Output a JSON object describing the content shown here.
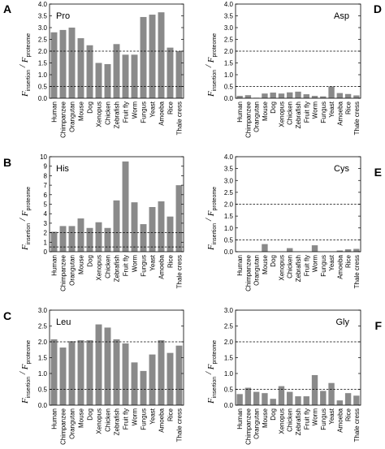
{
  "chart_data": [
    {
      "panel": "A",
      "type": "bar",
      "title": "Pro",
      "ylabel_main": "F",
      "ylabel_sub1": "insertion",
      "ylabel_sep": "/",
      "ylabel_sub2": "proteome",
      "ylim": [
        0,
        4
      ],
      "yticks": [
        "0.0",
        "0.5",
        "1.0",
        "1.5",
        "2.0",
        "2.5",
        "3.0",
        "3.5",
        "4.0"
      ],
      "reference_lines": [
        0.5,
        2.0
      ],
      "categories": [
        "Human",
        "Chimpanzee",
        "Orangutan",
        "Mouse",
        "Dog",
        "Xenopus",
        "Chicken",
        "Zebrafish",
        "Fruit fly",
        "Worm",
        "Fungus",
        "Yeast",
        "Amoeba",
        "Rice",
        "Thale cress"
      ],
      "values": [
        2.8,
        2.9,
        3.0,
        2.55,
        2.25,
        1.5,
        1.45,
        2.3,
        1.85,
        1.85,
        3.45,
        3.55,
        3.65,
        2.15,
        2.0
      ]
    },
    {
      "panel": "D",
      "type": "bar",
      "title": "Asp",
      "ylabel_main": "F",
      "ylabel_sub1": "insertion",
      "ylabel_sep": "/",
      "ylabel_sub2": "proteome",
      "ylim": [
        0,
        4
      ],
      "yticks": [
        "0.0",
        "0.5",
        "1.0",
        "1.5",
        "2.0",
        "2.5",
        "3.0",
        "3.5",
        "4.0"
      ],
      "reference_lines": [
        0.5,
        2.0
      ],
      "categories": [
        "Human",
        "Chimpanzee",
        "Orangutan",
        "Mouse",
        "Dog",
        "Xenopus",
        "Chicken",
        "Zebrafish",
        "Fruit fly",
        "Worm",
        "Fungus",
        "Yeast",
        "Amoeba",
        "Rice",
        "Thale cress"
      ],
      "values": [
        0.1,
        0.13,
        0.02,
        0.2,
        0.24,
        0.2,
        0.25,
        0.28,
        0.17,
        0.1,
        0.08,
        0.5,
        0.22,
        0.18,
        0.12
      ]
    },
    {
      "panel": "B",
      "type": "bar",
      "title": "His",
      "ylabel_main": "F",
      "ylabel_sub1": "insertion",
      "ylabel_sep": "/",
      "ylabel_sub2": "proteome",
      "ylim": [
        0,
        10
      ],
      "yticks": [
        "0",
        "1",
        "2",
        "3",
        "4",
        "5",
        "6",
        "7",
        "8",
        "9",
        "10"
      ],
      "reference_lines": [
        0.5,
        2.0
      ],
      "categories": [
        "Human",
        "Chimpanzee",
        "Orangutan",
        "Mouse",
        "Dog",
        "Xenopus",
        "Chicken",
        "Zebrafish",
        "Fruit fly",
        "Worm",
        "Fungus",
        "Yeast",
        "Amoeba",
        "Rice",
        "Thale cress"
      ],
      "values": [
        2.1,
        2.7,
        2.7,
        3.5,
        2.5,
        3.1,
        2.5,
        5.4,
        9.5,
        5.2,
        2.9,
        4.7,
        5.3,
        3.7,
        7.0
      ]
    },
    {
      "panel": "E",
      "type": "bar",
      "title": "Cys",
      "ylabel_main": "F",
      "ylabel_sub1": "insertion",
      "ylabel_sep": "/",
      "ylabel_sub2": "proteome",
      "ylim": [
        0,
        4
      ],
      "yticks": [
        "0.0",
        "0.5",
        "1.0",
        "1.5",
        "2.0",
        "2.5",
        "3.0",
        "3.5",
        "4.0"
      ],
      "reference_lines": [
        0.5,
        2.0
      ],
      "categories": [
        "Human",
        "Chimpanzee",
        "Orangutan",
        "Mouse",
        "Dog",
        "Xenopus",
        "Chicken",
        "Zebrafish",
        "Fruit fly",
        "Worm",
        "Fungus",
        "Yeast",
        "Amoeba",
        "Rice",
        "Thale cress"
      ],
      "values": [
        0,
        0,
        0,
        0.32,
        0,
        0,
        0.15,
        0,
        0,
        0.27,
        0,
        0,
        0.05,
        0.1,
        0.12
      ]
    },
    {
      "panel": "C",
      "type": "bar",
      "title": "Leu",
      "ylabel_main": "F",
      "ylabel_sub1": "insertion",
      "ylabel_sep": "/",
      "ylabel_sub2": "proteome",
      "ylim": [
        0,
        3
      ],
      "yticks": [
        "0.0",
        "0.5",
        "1.0",
        "1.5",
        "2.0",
        "2.5",
        "3.0"
      ],
      "reference_lines": [
        0.5,
        2.0
      ],
      "categories": [
        "Human",
        "Chimpanzee",
        "Orangutan",
        "Mouse",
        "Dog",
        "Xenopus",
        "Chicken",
        "Zebrafish",
        "Fruit fly",
        "Worm",
        "Fungus",
        "Yeast",
        "Amoeba",
        "Rice",
        "Thale cress"
      ],
      "values": [
        2.08,
        1.82,
        2.02,
        2.05,
        2.05,
        2.55,
        2.45,
        2.08,
        1.95,
        1.35,
        1.08,
        1.6,
        2.05,
        1.65,
        1.88
      ]
    },
    {
      "panel": "F",
      "type": "bar",
      "title": "Gly",
      "ylabel_main": "F",
      "ylabel_sub1": "insertion",
      "ylabel_sep": "/",
      "ylabel_sub2": "proteome",
      "ylim": [
        0,
        3
      ],
      "yticks": [
        "0.0",
        "0.5",
        "1.0",
        "1.5",
        "2.0",
        "2.5",
        "3.0"
      ],
      "reference_lines": [
        0.5,
        2.0
      ],
      "categories": [
        "Human",
        "Chimpanzee",
        "Orangutan",
        "Mouse",
        "Dog",
        "Xenopus",
        "Chicken",
        "Zebrafish",
        "Fruit fly",
        "Worm",
        "Fungus",
        "Yeast",
        "Amoeba",
        "Rice",
        "Thale cress"
      ],
      "values": [
        0.35,
        0.55,
        0.42,
        0.38,
        0.2,
        0.6,
        0.42,
        0.28,
        0.28,
        0.95,
        0.45,
        0.7,
        0.15,
        0.38,
        0.3
      ]
    }
  ]
}
